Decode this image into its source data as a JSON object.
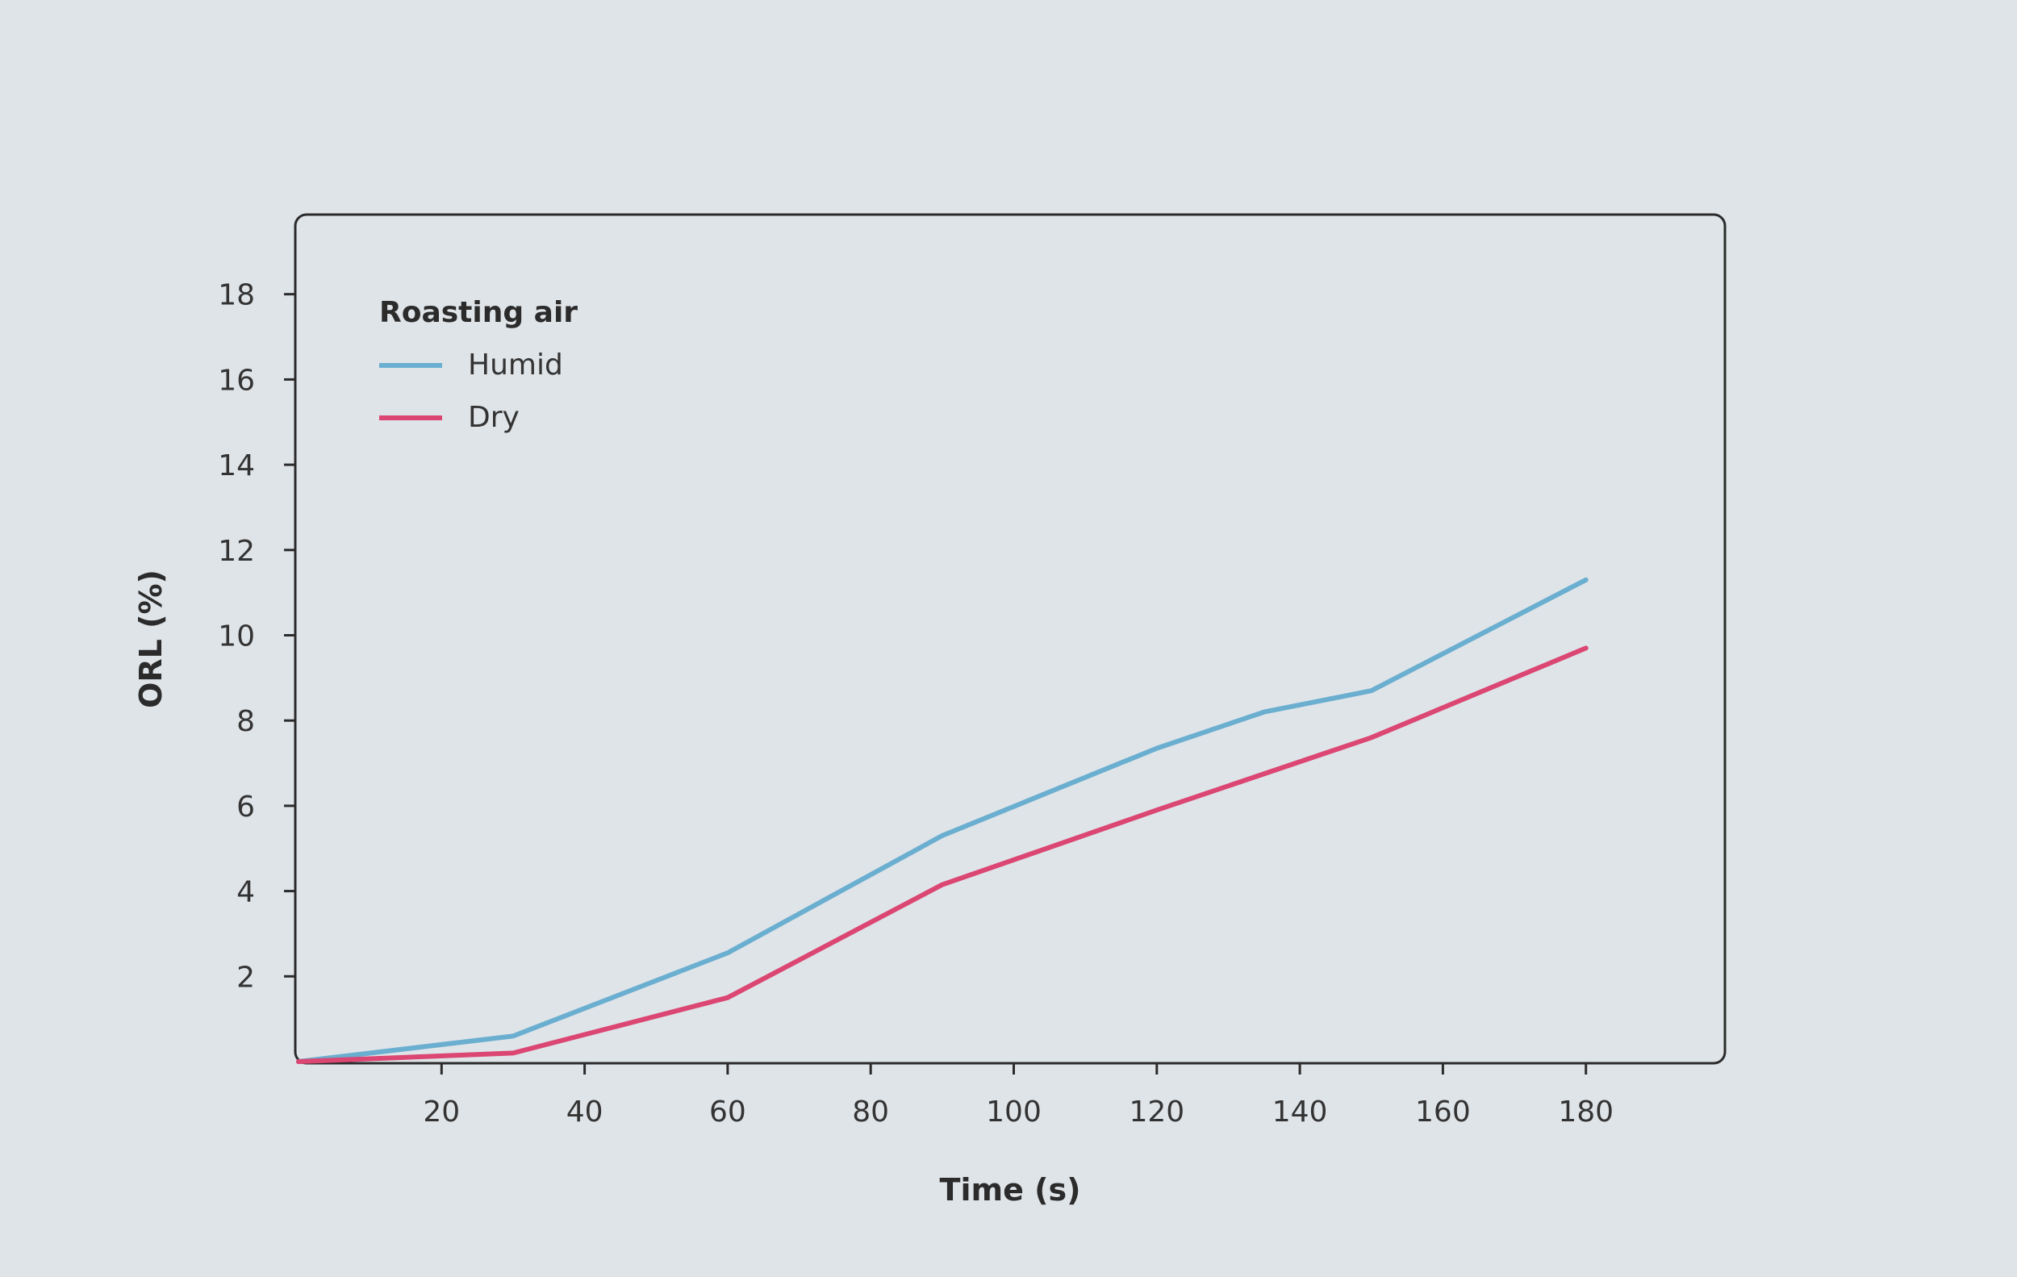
{
  "chart_data": {
    "type": "line",
    "xlabel": "Time (s)",
    "ylabel": "ORL (%)",
    "xlim": [
      0,
      200
    ],
    "ylim": [
      0,
      20
    ],
    "x_ticks": [
      20,
      40,
      60,
      80,
      100,
      120,
      140,
      160,
      180
    ],
    "y_ticks": [
      2,
      4,
      6,
      8,
      10,
      12,
      14,
      16,
      18
    ],
    "grid": false,
    "legend": {
      "title": "Roasting air",
      "placement": "top-left"
    },
    "series": [
      {
        "name": "Humid",
        "color": "#6aaed0",
        "x": [
          0,
          30,
          60,
          90,
          120,
          135,
          150,
          180
        ],
        "y": [
          0,
          0.6,
          2.55,
          5.3,
          7.35,
          8.2,
          8.7,
          11.3
        ]
      },
      {
        "name": "Dry",
        "color": "#db4673",
        "x": [
          0,
          30,
          60,
          90,
          120,
          150,
          180
        ],
        "y": [
          0,
          0.2,
          1.5,
          4.15,
          5.9,
          7.6,
          9.7
        ]
      }
    ]
  }
}
